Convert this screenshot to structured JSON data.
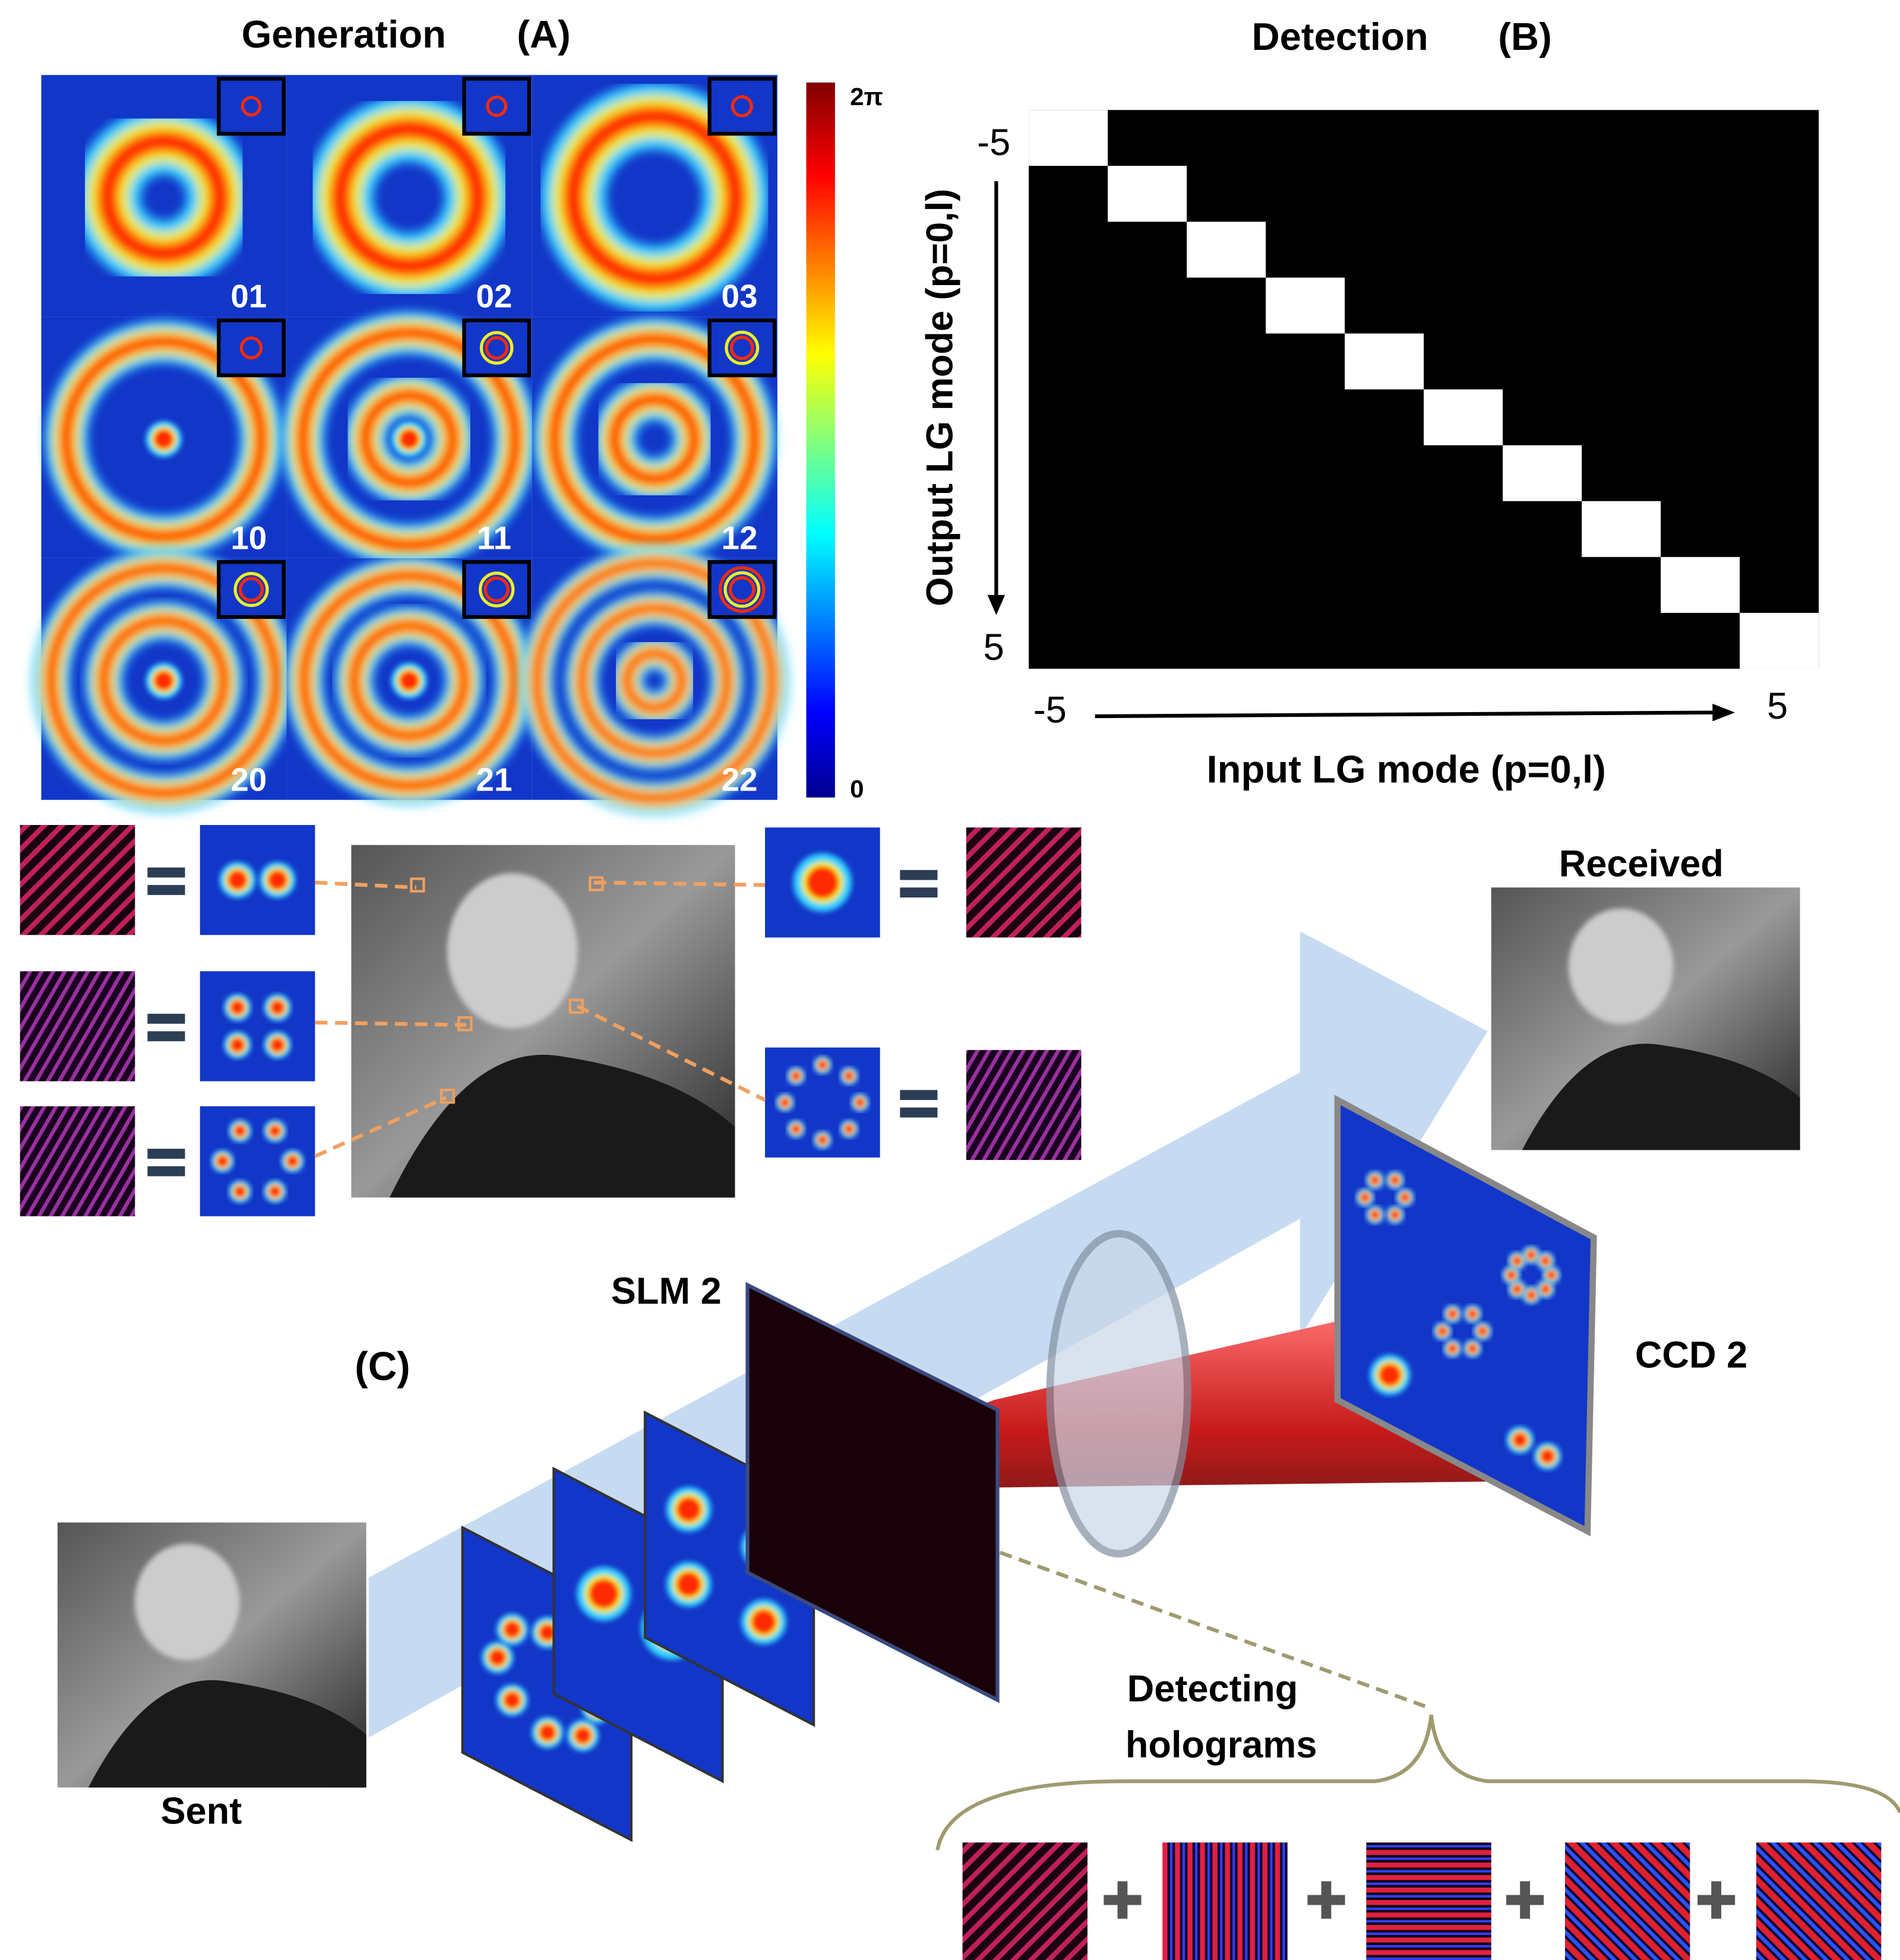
{
  "panel_a": {
    "title": "Generation",
    "label": "(A)",
    "colorbar": {
      "max": "2π",
      "min": "0"
    },
    "modes": [
      "01",
      "02",
      "03",
      "10",
      "11",
      "12",
      "20",
      "21",
      "22"
    ]
  },
  "panel_b": {
    "title": "Detection",
    "label": "(B)",
    "y_axis": {
      "label": "Output LG mode (p=0,l)",
      "start": "-5",
      "end": "5"
    },
    "x_axis": {
      "label": "Input LG mode (p=0,l)",
      "start": "-5",
      "end": "5"
    }
  },
  "panel_c": {
    "label": "(C)",
    "received": "Received",
    "slm": "SLM 2",
    "ccd": "CCD 2",
    "sent": "Sent",
    "holograms": [
      "Detecting",
      "holograms"
    ]
  }
}
